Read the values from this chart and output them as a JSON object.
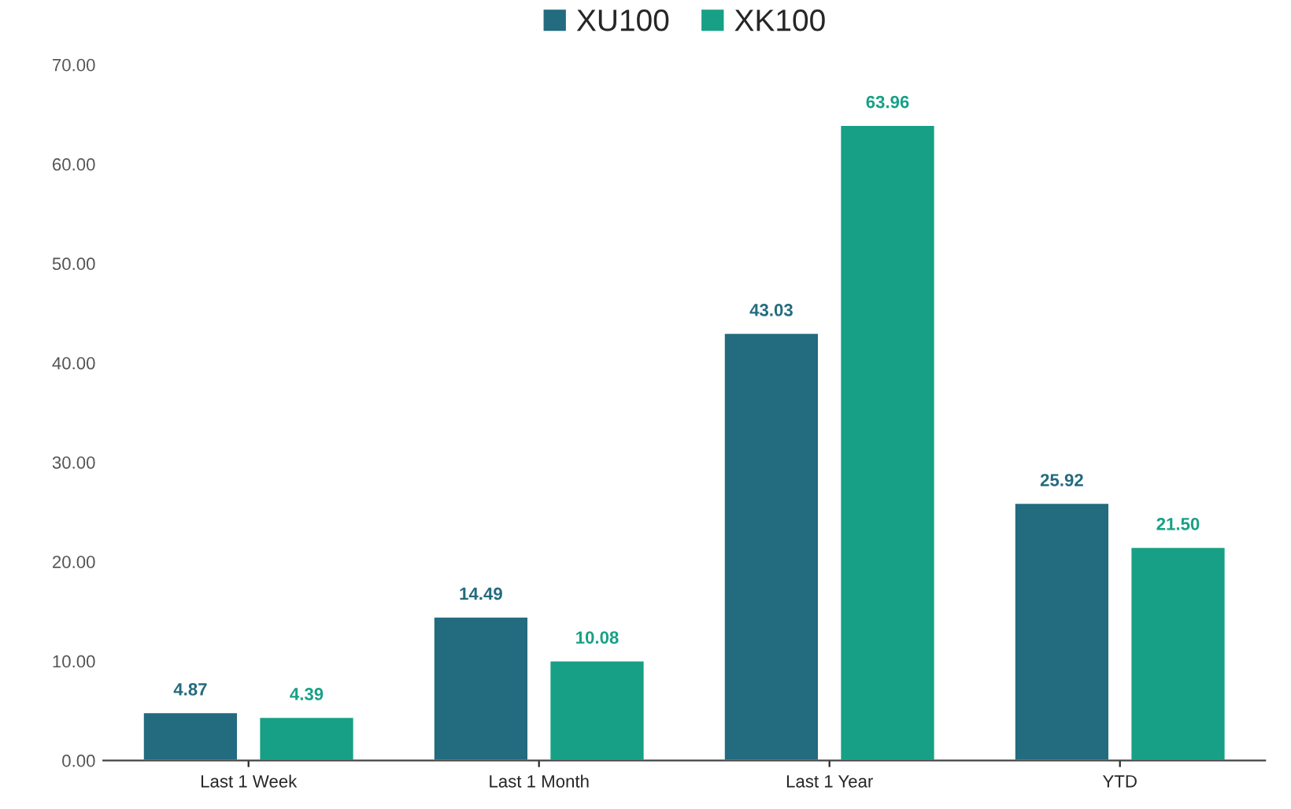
{
  "chart_data": {
    "type": "bar",
    "categories": [
      "Last 1 Week",
      "Last 1 Month",
      "Last 1 Year",
      "YTD"
    ],
    "series": [
      {
        "name": "XU100",
        "color": "#236b7e",
        "values": [
          4.87,
          14.49,
          43.03,
          25.92
        ],
        "value_labels": [
          "4.87",
          "14.49",
          "43.03",
          "25.92"
        ]
      },
      {
        "name": "XK100",
        "color": "#17a085",
        "values": [
          4.39,
          10.08,
          63.96,
          21.5
        ],
        "value_labels": [
          "4.39",
          "10.08",
          "63.96",
          "21.50"
        ]
      }
    ],
    "ylim": [
      0,
      70
    ],
    "yticks": [
      {
        "value": 0,
        "label": "0.00"
      },
      {
        "value": 10,
        "label": "10.00"
      },
      {
        "value": 20,
        "label": "20.00"
      },
      {
        "value": 30,
        "label": "30.00"
      },
      {
        "value": 40,
        "label": "40.00"
      },
      {
        "value": 50,
        "label": "50.00"
      },
      {
        "value": 60,
        "label": "60.00"
      },
      {
        "value": 70,
        "label": "70.00"
      }
    ],
    "grid": false,
    "legend": "top"
  }
}
